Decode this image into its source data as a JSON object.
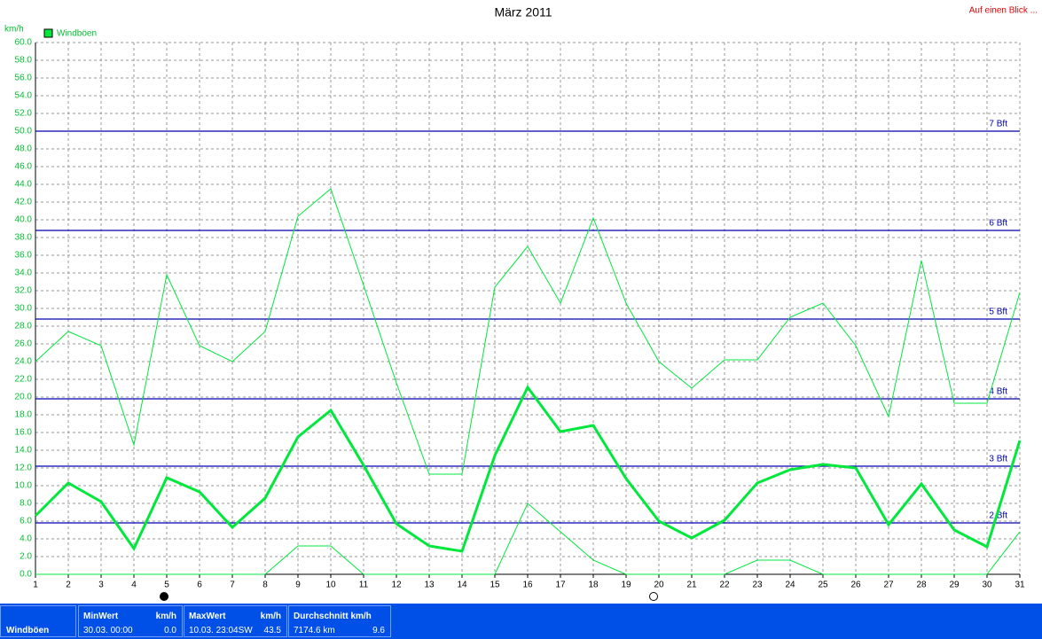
{
  "chart_data": {
    "type": "line",
    "title": "März 2011",
    "y_label": "km/h",
    "link": "Auf einen Blick ...",
    "x": [
      1,
      2,
      3,
      4,
      5,
      6,
      7,
      8,
      9,
      10,
      11,
      12,
      13,
      14,
      15,
      16,
      17,
      18,
      19,
      20,
      21,
      22,
      23,
      24,
      25,
      26,
      27,
      28,
      29,
      30,
      31
    ],
    "xlim": [
      1,
      31
    ],
    "xticks": [
      1,
      2,
      3,
      4,
      5,
      6,
      7,
      8,
      9,
      10,
      11,
      12,
      13,
      14,
      15,
      16,
      17,
      18,
      19,
      20,
      21,
      22,
      23,
      24,
      25,
      26,
      27,
      28,
      29,
      30,
      31
    ],
    "ylim": [
      0,
      60
    ],
    "yticks": [
      {
        "value": 0,
        "label": "0.0"
      },
      {
        "value": 2,
        "label": "2.0"
      },
      {
        "value": 4,
        "label": "4.0"
      },
      {
        "value": 6,
        "label": "6.0"
      },
      {
        "value": 8,
        "label": "8.0"
      },
      {
        "value": 10,
        "label": "10.0"
      },
      {
        "value": 12,
        "label": "12.0"
      },
      {
        "value": 14,
        "label": "14.0"
      },
      {
        "value": 16,
        "label": "16.0"
      },
      {
        "value": 18,
        "label": "18.0"
      },
      {
        "value": 20,
        "label": "20.0"
      },
      {
        "value": 22,
        "label": "22.0"
      },
      {
        "value": 24,
        "label": "24.0"
      },
      {
        "value": 26,
        "label": "26.0"
      },
      {
        "value": 28,
        "label": "28.0"
      },
      {
        "value": 30,
        "label": "30.0"
      },
      {
        "value": 32,
        "label": "32.0"
      },
      {
        "value": 34,
        "label": "34.0"
      },
      {
        "value": 36,
        "label": "36.0"
      },
      {
        "value": 38,
        "label": "38.0"
      },
      {
        "value": 40,
        "label": "40.0"
      },
      {
        "value": 42,
        "label": "42.0"
      },
      {
        "value": 44,
        "label": "44.0"
      },
      {
        "value": 46,
        "label": "46.0"
      },
      {
        "value": 48,
        "label": "48.0"
      },
      {
        "value": 50,
        "label": "50.0"
      },
      {
        "value": 52,
        "label": "52.0"
      },
      {
        "value": 54,
        "label": "54.0"
      },
      {
        "value": 56,
        "label": "56.0"
      },
      {
        "value": 58,
        "label": "58.0"
      },
      {
        "value": 60,
        "label": "60.0"
      }
    ],
    "grid": true,
    "legend": "top-left",
    "series": [
      {
        "name": "Windböen",
        "color": "#00e83c",
        "values": [
          6.6,
          10.3,
          8.2,
          2.9,
          10.9,
          9.3,
          5.3,
          8.6,
          15.5,
          18.5,
          12.3,
          5.7,
          3.2,
          2.6,
          13.4,
          21.1,
          16.1,
          16.8,
          10.8,
          6.0,
          4.1,
          6.1,
          10.3,
          11.8,
          12.4,
          12.0,
          5.6,
          10.2,
          5.0,
          3.1,
          15.1
        ],
        "high": [
          24.0,
          27.4,
          25.8,
          14.6,
          33.8,
          25.8,
          24.0,
          27.4,
          40.4,
          43.5,
          32.6,
          21.6,
          11.3,
          11.3,
          32.4,
          37.0,
          30.6,
          40.2,
          30.6,
          24.0,
          21.0,
          24.2,
          24.2,
          29.0,
          30.6,
          25.8,
          17.8,
          35.4,
          19.3,
          19.3,
          31.8
        ],
        "low": [
          0,
          0,
          0,
          0,
          0,
          0,
          0,
          0,
          3.2,
          3.2,
          0,
          0,
          0,
          0,
          0,
          8.0,
          4.8,
          1.6,
          0,
          0,
          0,
          0,
          1.6,
          1.6,
          0,
          0,
          0,
          0,
          0,
          0,
          4.8
        ]
      }
    ],
    "reference_lines": {
      "color": "#0000b0",
      "lines": [
        {
          "value": 50,
          "label": "7 Bft"
        },
        {
          "value": 38.8,
          "label": "6 Bft"
        },
        {
          "value": 28.8,
          "label": "5 Bft"
        },
        {
          "value": 19.8,
          "label": "4 Bft"
        },
        {
          "value": 12.2,
          "label": "3 Bft"
        },
        {
          "value": 5.8,
          "label": "2 Bft"
        }
      ]
    }
  },
  "summary": {
    "label": "Windböen",
    "columns": [
      {
        "header": "MinWert",
        "unit": "km/h",
        "left": "30.03.  00:00",
        "right": "0.0"
      },
      {
        "header": "MaxWert",
        "unit": "km/h",
        "left": "10.03.  23:04SW",
        "right": "43.5"
      },
      {
        "header": "Durchschnitt km/h",
        "left": "7174.6 km",
        "right": "9.6"
      }
    ]
  }
}
